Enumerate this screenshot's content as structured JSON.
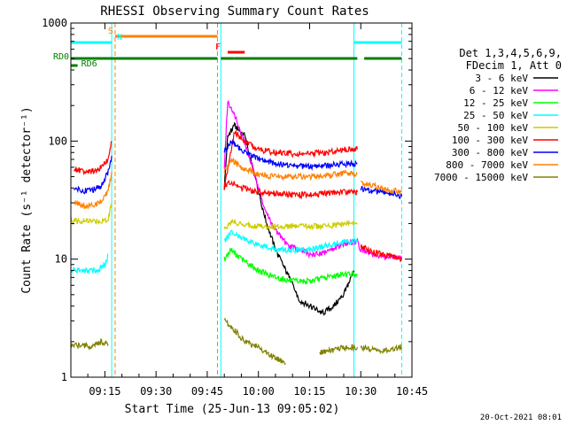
{
  "chart_data": {
    "type": "line",
    "title": "RHESSI Observing Summary Count Rates",
    "xlabel": "Start Time (25-Jun-13 09:05:02)",
    "ylabel": "Count Rate (s⁻¹ detector⁻¹)",
    "y_scale": "log",
    "ylim": [
      1,
      1000
    ],
    "xlim": [
      "09:05:02",
      "10:45:00"
    ],
    "x_ticks": [
      "09:15",
      "09:30",
      "09:45",
      "10:00",
      "10:15",
      "10:30",
      "10:45"
    ],
    "y_ticks": [
      "1",
      "10",
      "100",
      "1000"
    ],
    "footer_date": "20-Oct-2021 08:01",
    "legend": {
      "header": [
        "Det 1,3,4,5,6,9,",
        "FDecim 1, Att 0"
      ],
      "position": "right"
    },
    "flags": [
      {
        "label": "S",
        "color": "#ff8000",
        "segments": [
          [
            "09:18",
            "09:48"
          ]
        ]
      },
      {
        "label": "N",
        "color": "#00ffff",
        "segments": [
          [
            "09:05",
            "09:17"
          ],
          [
            "10:28",
            "10:42"
          ]
        ]
      },
      {
        "label": "F",
        "color": "#ff0000",
        "segments": [
          [
            "09:51",
            "09:56"
          ]
        ]
      },
      {
        "label": "RD0",
        "color": "#008000",
        "segments": [
          [
            "09:05",
            "09:48"
          ],
          [
            "09:49",
            "09:53"
          ],
          [
            "09:53",
            "10:29"
          ],
          [
            "10:31",
            "10:42"
          ]
        ]
      },
      {
        "label": "RD6",
        "color": "#008000",
        "segments": [
          [
            "09:05",
            "09:07"
          ]
        ]
      }
    ],
    "vlines": [
      {
        "time": "09:17",
        "color": "#00ffff",
        "style": "solid"
      },
      {
        "time": "09:18",
        "color": "#ff8000",
        "style": "dashed"
      },
      {
        "time": "09:48",
        "color": "#ff8000",
        "style": "dashed"
      },
      {
        "time": "09:49",
        "color": "#00ffff",
        "style": "solid"
      },
      {
        "time": "10:28",
        "color": "#00ffff",
        "style": "solid"
      },
      {
        "time": "10:42",
        "color": "#00ffff",
        "style": "dashed"
      }
    ],
    "series": [
      {
        "name": "3 - 6 keV",
        "color": "#000000",
        "segments": [
          {
            "t": [
              "09:50",
              "09:51",
              "09:53",
              "09:56",
              "09:59",
              "10:02",
              "10:05",
              "10:09",
              "10:12",
              "10:15",
              "10:19",
              "10:22",
              "10:25",
              "10:28"
            ],
            "v": [
              40,
              110,
              135,
              110,
              50,
              22,
              12,
              7,
              4.5,
              4,
              3.5,
              4,
              5,
              8
            ]
          }
        ]
      },
      {
        "name": "6 - 12 keV",
        "color": "#ff00ff",
        "segments": [
          {
            "t": [
              "09:50",
              "09:51",
              "09:52",
              "09:54",
              "09:57",
              "10:00",
              "10:03",
              "10:06",
              "10:09",
              "10:12",
              "10:15",
              "10:18",
              "10:21",
              "10:24",
              "10:27",
              "10:29",
              "10:30",
              "10:33",
              "10:36",
              "10:39",
              "10:42"
            ],
            "v": [
              60,
              220,
              190,
              140,
              80,
              40,
              22,
              16,
              13,
              12,
              11,
              11,
              12,
              13,
              14,
              14,
              12,
              11,
              10.5,
              10.5,
              10
            ]
          }
        ]
      },
      {
        "name": "12 - 25 keV",
        "color": "#00ff00",
        "segments": [
          {
            "t": [
              "09:50",
              "09:52",
              "09:55",
              "10:00",
              "10:05",
              "10:10",
              "10:15",
              "10:20",
              "10:25",
              "10:29"
            ],
            "v": [
              10,
              12,
              10,
              8,
              7,
              6.5,
              6.5,
              7,
              7.5,
              7.5
            ]
          }
        ]
      },
      {
        "name": "25 - 50 keV",
        "color": "#00ffff",
        "segments": [
          {
            "t": [
              "09:05",
              "09:10",
              "09:13",
              "09:15",
              "09:16"
            ],
            "v": [
              8,
              8,
              8,
              9,
              11
            ]
          },
          {
            "t": [
              "09:50",
              "09:52",
              "09:55",
              "09:58",
              "10:01",
              "10:05",
              "10:10",
              "10:15",
              "10:20",
              "10:25",
              "10:29"
            ],
            "v": [
              14,
              17,
              15,
              14,
              13,
              12,
              12,
              12,
              13,
              14,
              14
            ]
          }
        ]
      },
      {
        "name": "50 - 100 keV",
        "color": "#cccc00",
        "segments": [
          {
            "t": [
              "09:05",
              "09:10",
              "09:14",
              "09:16",
              "09:17"
            ],
            "v": [
              21,
              21,
              21,
              22,
              30
            ]
          },
          {
            "t": [
              "09:50",
              "09:52",
              "09:55",
              "10:00",
              "10:05",
              "10:10",
              "10:15",
              "10:20",
              "10:25",
              "10:29"
            ],
            "v": [
              18,
              21,
              20,
              19,
              19,
              19,
              19,
              19,
              20,
              20
            ]
          }
        ]
      },
      {
        "name": "100 - 300 keV",
        "color": "#ff0000",
        "segments": [
          {
            "t": [
              "09:06",
              "09:09",
              "09:12",
              "09:14",
              "09:16",
              "09:17"
            ],
            "v": [
              58,
              55,
              56,
              60,
              70,
              100
            ]
          },
          {
            "t": [
              "09:50",
              "09:53",
              "09:56",
              "10:00",
              "10:05",
              "10:10",
              "10:15",
              "10:20",
              "10:25",
              "10:29"
            ],
            "v": [
              40,
              120,
              100,
              85,
              80,
              78,
              78,
              80,
              85,
              85
            ]
          },
          {
            "t": [
              "09:50",
              "09:52",
              "09:55",
              "10:00",
              "10:05",
              "10:10",
              "10:15",
              "10:20",
              "10:25",
              "10:29"
            ],
            "v": [
              42,
              45,
              40,
              37,
              36,
              35,
              35,
              36,
              37,
              37
            ]
          },
          {
            "t": [
              "10:30",
              "10:33",
              "10:36",
              "10:39",
              "10:42"
            ],
            "v": [
              13,
              11.5,
              11,
              10.5,
              10
            ]
          }
        ]
      },
      {
        "name": "300 - 800 keV",
        "color": "#0000ff",
        "segments": [
          {
            "t": [
              "09:06",
              "09:09",
              "09:12",
              "09:14",
              "09:16",
              "09:17"
            ],
            "v": [
              40,
              38,
              39,
              42,
              55,
              75
            ]
          },
          {
            "t": [
              "09:50",
              "09:52",
              "09:55",
              "10:00",
              "10:05",
              "10:10",
              "10:15",
              "10:20",
              "10:25",
              "10:29"
            ],
            "v": [
              80,
              100,
              85,
              70,
              65,
              62,
              61,
              62,
              64,
              64
            ]
          },
          {
            "t": [
              "10:30",
              "10:33",
              "10:36",
              "10:39",
              "10:42"
            ],
            "v": [
              40,
              38,
              37,
              36,
              34
            ]
          }
        ]
      },
      {
        "name": "800 - 7000 keV",
        "color": "#ff8000",
        "segments": [
          {
            "t": [
              "09:06",
              "09:09",
              "09:12",
              "09:14",
              "09:16",
              "09:17"
            ],
            "v": [
              30,
              28,
              29,
              31,
              38,
              55
            ]
          },
          {
            "t": [
              "09:50",
              "09:52",
              "09:55",
              "10:00",
              "10:05",
              "10:10",
              "10:15",
              "10:20",
              "10:25",
              "10:29"
            ],
            "v": [
              55,
              70,
              60,
              52,
              50,
              50,
              50,
              51,
              53,
              53
            ]
          },
          {
            "t": [
              "10:30",
              "10:33",
              "10:36",
              "10:39",
              "10:42"
            ],
            "v": [
              45,
              42,
              40,
              38,
              37
            ]
          }
        ]
      },
      {
        "name": "7000 - 15000 keV",
        "color": "#808000",
        "segments": [
          {
            "t": [
              "09:05",
              "09:08",
              "09:11",
              "09:14",
              "09:16"
            ],
            "v": [
              1.8,
              1.9,
              1.8,
              2,
              1.9
            ]
          },
          {
            "t": [
              "09:50",
              "09:53",
              "09:56",
              "10:00",
              "10:04",
              "10:08"
            ],
            "v": [
              3,
              2.5,
              2,
              1.8,
              1.5,
              1.3
            ]
          },
          {
            "t": [
              "10:18",
              "10:22",
              "10:26",
              "10:29"
            ],
            "v": [
              1.6,
              1.7,
              1.8,
              1.8
            ]
          },
          {
            "t": [
              "10:30",
              "10:34",
              "10:38",
              "10:42"
            ],
            "v": [
              1.8,
              1.7,
              1.7,
              1.8
            ]
          }
        ]
      }
    ]
  }
}
